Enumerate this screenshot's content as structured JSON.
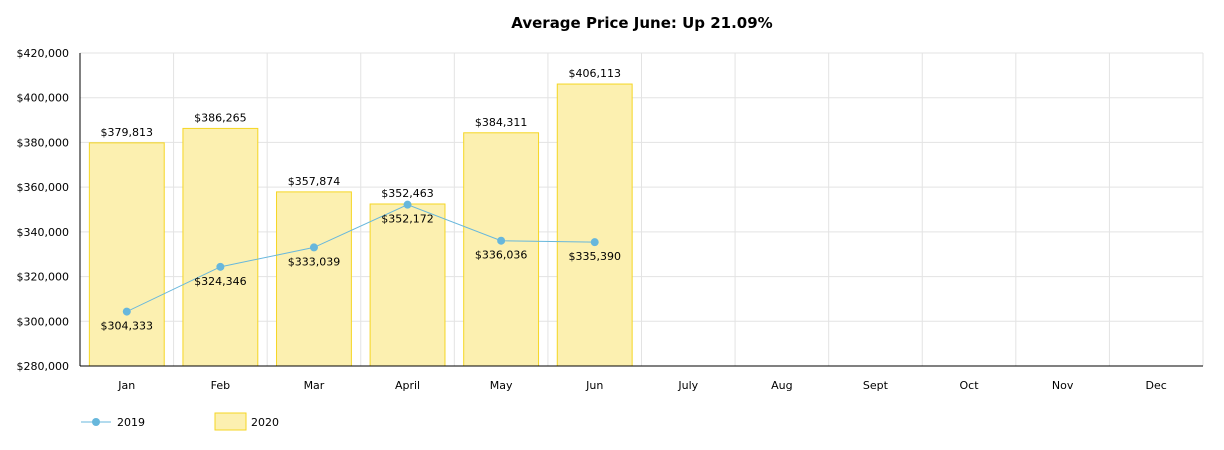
{
  "chart_data": {
    "type": "bar",
    "title": "Average Price June: Up 21.09%",
    "categories": [
      "Jan",
      "Feb",
      "Mar",
      "April",
      "May",
      "Jun",
      "July",
      "Aug",
      "Sept",
      "Oct",
      "Nov",
      "Dec"
    ],
    "y_ticks": [
      "$280,000",
      "$300,000",
      "$320,000",
      "$340,000",
      "$360,000",
      "$380,000",
      "$400,000",
      "$420,000"
    ],
    "ylim": [
      280000,
      420000
    ],
    "grid": true,
    "legend_position": "bottom-left",
    "series": [
      {
        "name": "2020",
        "kind": "bar",
        "color": "#fcf0b0",
        "stroke": "#f5d623",
        "values": [
          379813,
          386265,
          357874,
          352463,
          384311,
          406113,
          null,
          null,
          null,
          null,
          null,
          null
        ],
        "labels": [
          "$379,813",
          "$386,265",
          "$357,874",
          "$352,463",
          "$384,311",
          "$406,113",
          "",
          "",
          "",
          "",
          "",
          ""
        ]
      },
      {
        "name": "2019",
        "kind": "line",
        "color": "#67b7dc",
        "values": [
          304333,
          324346,
          333039,
          352172,
          336036,
          335390,
          null,
          null,
          null,
          null,
          null,
          null
        ],
        "labels": [
          "$304,333",
          "$324,346",
          "$333,039",
          "$352,172",
          "$336,036",
          "$335,390",
          "",
          "",
          "",
          "",
          "",
          ""
        ]
      }
    ]
  }
}
